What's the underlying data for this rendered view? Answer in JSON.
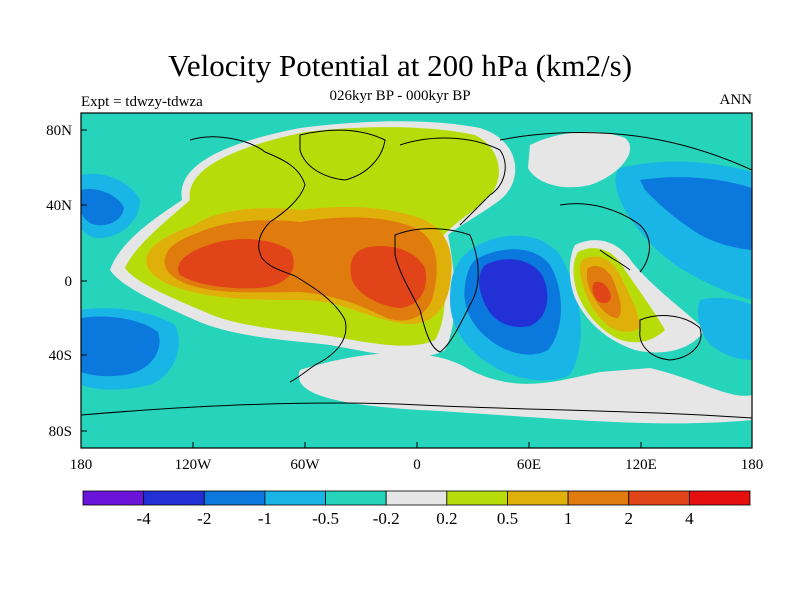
{
  "header": {
    "title": "Velocity Potential at 200 hPa (km2/s)",
    "subtitle": "026kyr BP - 000kyr BP",
    "left_label": "Expt = tdwzy-tdwza",
    "right_label": "ANN"
  },
  "map": {
    "lat_ticks": [
      "80N",
      "40N",
      "0",
      "40S",
      "80S"
    ],
    "lon_ticks": [
      "180",
      "120W",
      "60W",
      "0",
      "60E",
      "120E",
      "180"
    ]
  },
  "colorbar": {
    "colors": [
      "#6a14d9",
      "#2330d6",
      "#0a78dc",
      "#19b5e6",
      "#26d3bb",
      "#e6e6e6",
      "#b8dc0a",
      "#e0b00a",
      "#e07b0e",
      "#e2441a",
      "#e60f10"
    ],
    "labels": [
      "-4",
      "-2",
      "-1",
      "-0.5",
      "-0.2",
      "0.2",
      "0.5",
      "1",
      "2",
      "4"
    ]
  }
}
